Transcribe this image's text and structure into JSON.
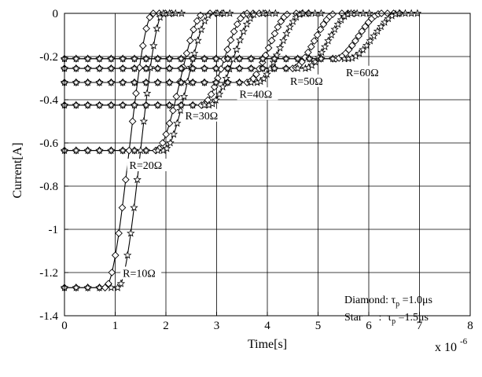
{
  "chart_data": {
    "type": "line",
    "xlabel": "Time[s]",
    "ylabel": "Current[A]",
    "x_multiplier": "x 10",
    "x_multiplier_exp": "-6",
    "xlim": [
      0,
      8
    ],
    "ylim": [
      -1.4,
      0
    ],
    "xticks": [
      0,
      1,
      2,
      3,
      4,
      5,
      6,
      7,
      8
    ],
    "yticks": [
      0,
      -0.2,
      -0.4,
      -0.6,
      -0.8,
      -1,
      -1.2,
      -1.4
    ],
    "grid": true,
    "legend": {
      "line1": "Diamond: τp =1.0μs",
      "line2": "Star      :  τp =1.5μs",
      "line1_prefix": "Diamond: τ",
      "line1_sub": "p",
      "line1_suffix": " =1.0μs",
      "line2_prefix": "Star      :  τ",
      "line2_sub": "p",
      "line2_suffix": " =1.5μs"
    },
    "annotations": [
      {
        "text": "R=10Ω",
        "x": 1.15,
        "y": -1.22
      },
      {
        "text": "R=20Ω",
        "x": 1.28,
        "y": -0.72
      },
      {
        "text": "R=30Ω",
        "x": 2.38,
        "y": -0.49
      },
      {
        "text": "R=40Ω",
        "x": 3.45,
        "y": -0.39
      },
      {
        "text": "R=50Ω",
        "x": 4.45,
        "y": -0.33
      },
      {
        "text": "R=60Ω",
        "x": 5.55,
        "y": -0.29
      }
    ],
    "series": [
      {
        "marker": "diamond",
        "resistance": "R=10Ω",
        "level": -1.27,
        "drop": 0.8,
        "rise": 1.75
      },
      {
        "marker": "star",
        "resistance": "R=10Ω",
        "level": -1.27,
        "drop": 1.05,
        "rise": 1.95
      },
      {
        "marker": "diamond",
        "resistance": "R=20Ω",
        "level": -0.635,
        "drop": 1.8,
        "rise": 2.75
      },
      {
        "marker": "star",
        "resistance": "R=20Ω",
        "level": -0.635,
        "drop": 1.95,
        "rise": 2.9
      },
      {
        "marker": "diamond",
        "resistance": "R=30Ω",
        "level": -0.425,
        "drop": 2.7,
        "rise": 3.6
      },
      {
        "marker": "star",
        "resistance": "R=30Ω",
        "level": -0.425,
        "drop": 2.85,
        "rise": 3.8
      },
      {
        "marker": "diamond",
        "resistance": "R=40Ω",
        "level": -0.32,
        "drop": 3.6,
        "rise": 4.45
      },
      {
        "marker": "star",
        "resistance": "R=40Ω",
        "level": -0.32,
        "drop": 3.8,
        "rise": 4.7
      },
      {
        "marker": "diamond",
        "resistance": "R=50Ω",
        "level": -0.255,
        "drop": 4.5,
        "rise": 5.35
      },
      {
        "marker": "star",
        "resistance": "R=50Ω",
        "level": -0.255,
        "drop": 4.75,
        "rise": 5.65
      },
      {
        "marker": "diamond",
        "resistance": "R=60Ω",
        "level": -0.21,
        "drop": 5.35,
        "rise": 6.25
      },
      {
        "marker": "star",
        "resistance": "R=60Ω",
        "level": -0.21,
        "drop": 5.6,
        "rise": 6.6
      }
    ],
    "colors": {
      "line": "#000000",
      "grid": "#000000",
      "background": "#ffffff"
    }
  }
}
